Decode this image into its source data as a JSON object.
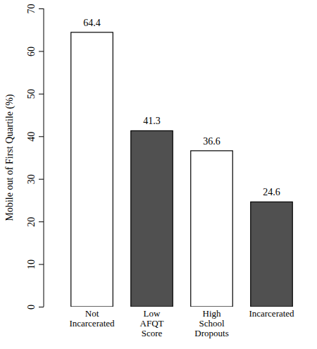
{
  "chart_data": {
    "type": "bar",
    "ylabel": "Mobile out of First Quartile (%)",
    "categories": [
      "Not Incarcerated",
      "Low AFQT Score",
      "High School Dropouts",
      "Incarcerated"
    ],
    "values": [
      64.4,
      41.3,
      36.6,
      24.6
    ],
    "colors": [
      "#ffffff",
      "#505050",
      "#ffffff",
      "#505050"
    ],
    "ylim": [
      0,
      70
    ],
    "yticks": [
      0,
      10,
      20,
      30,
      40,
      50,
      60,
      70
    ],
    "data_labels": true
  }
}
